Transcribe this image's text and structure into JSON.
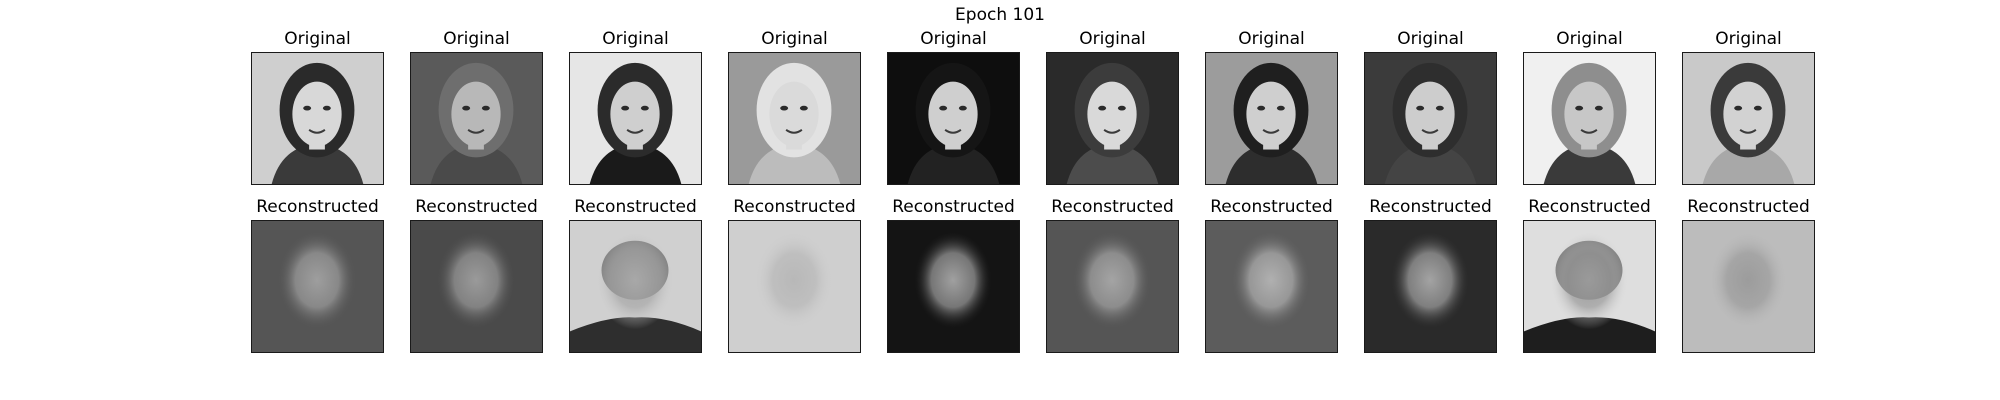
{
  "figure": {
    "title": "Epoch 101"
  },
  "samples": [
    {
      "original_title": "Original",
      "reconstructed_title": "Reconstructed",
      "original_image": "grayscale-face-photo-woman-long-wavy-hair",
      "reconstructed_image": "blurry-reconstructed-face"
    },
    {
      "original_title": "Original",
      "reconstructed_title": "Reconstructed",
      "original_image": "grayscale-face-photo-man-tousled-hair",
      "reconstructed_image": "blurry-reconstructed-face"
    },
    {
      "original_title": "Original",
      "reconstructed_title": "Reconstructed",
      "original_image": "grayscale-face-photo-man-suit-tie",
      "reconstructed_image": "blurry-reconstructed-face"
    },
    {
      "original_title": "Original",
      "reconstructed_title": "Reconstructed",
      "original_image": "grayscale-face-photo-woman-blonde",
      "reconstructed_image": "blurry-reconstructed-face"
    },
    {
      "original_title": "Original",
      "reconstructed_title": "Reconstructed",
      "original_image": "grayscale-face-photo-woman-dark-background",
      "reconstructed_image": "blurry-reconstructed-face"
    },
    {
      "original_title": "Original",
      "reconstructed_title": "Reconstructed",
      "original_image": "grayscale-face-photo-woman-smiling",
      "reconstructed_image": "blurry-reconstructed-face"
    },
    {
      "original_title": "Original",
      "reconstructed_title": "Reconstructed",
      "original_image": "grayscale-face-photo-woman-dark-hair",
      "reconstructed_image": "blurry-reconstructed-face"
    },
    {
      "original_title": "Original",
      "reconstructed_title": "Reconstructed",
      "original_image": "grayscale-face-photo-woman-long-hair",
      "reconstructed_image": "blurry-reconstructed-face"
    },
    {
      "original_title": "Original",
      "reconstructed_title": "Reconstructed",
      "original_image": "grayscale-face-photo-man-older-speaking",
      "reconstructed_image": "blurry-reconstructed-face"
    },
    {
      "original_title": "Original",
      "reconstructed_title": "Reconstructed",
      "original_image": "grayscale-face-photo-young-man",
      "reconstructed_image": "blurry-reconstructed-face"
    }
  ]
}
